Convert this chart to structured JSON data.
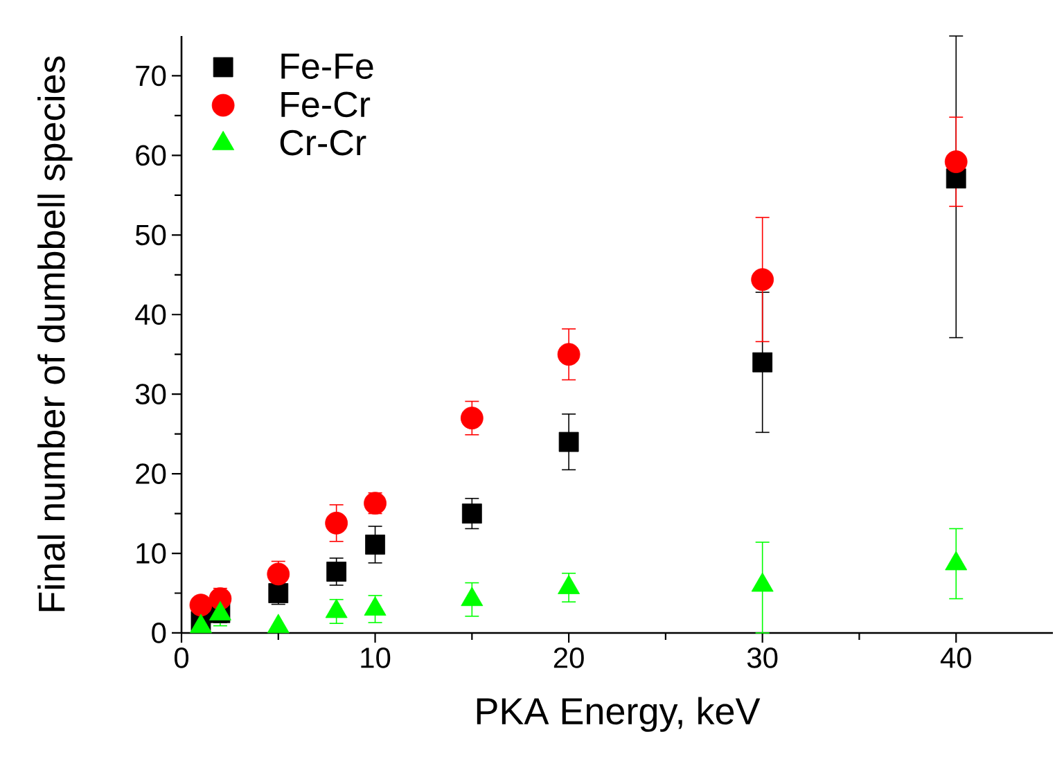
{
  "chart_data": {
    "type": "scatter",
    "xlabel": "PKA Energy, keV",
    "ylabel": "Final number of dumbbell species",
    "xlim": [
      0,
      45
    ],
    "ylim": [
      0,
      75
    ],
    "xticks": [
      0,
      10,
      20,
      30,
      40
    ],
    "yticks": [
      0,
      10,
      20,
      30,
      40,
      50,
      60,
      70
    ],
    "legend": "top left",
    "grid": false,
    "series": [
      {
        "name": "Fe-Fe",
        "color": "#000000",
        "marker": "square",
        "x": [
          1,
          2,
          5,
          8,
          10,
          15,
          20,
          30,
          40
        ],
        "values": [
          1.5,
          2.5,
          5.0,
          7.7,
          11.1,
          15.0,
          24.0,
          34.0,
          57.1
        ],
        "errors": [
          null,
          1.2,
          1.4,
          1.7,
          2.3,
          1.9,
          3.5,
          8.8,
          [
            37.1,
            75
          ]
        ]
      },
      {
        "name": "Fe-Cr",
        "color": "#ff0000",
        "marker": "circle",
        "x": [
          1,
          2,
          5,
          8,
          10,
          15,
          20,
          30,
          40
        ],
        "values": [
          3.5,
          4.3,
          7.4,
          13.8,
          16.3,
          27.0,
          35.0,
          44.4,
          59.2
        ],
        "errors": [
          0.8,
          1.3,
          1.6,
          2.3,
          1.3,
          2.1,
          3.2,
          7.8,
          5.6
        ]
      },
      {
        "name": "Cr-Cr",
        "color": "#00ff00",
        "marker": "triangle",
        "x": [
          1,
          2,
          5,
          8,
          10,
          15,
          20,
          30,
          40
        ],
        "values": [
          0.8,
          2.4,
          0.8,
          2.7,
          3.0,
          4.2,
          5.7,
          6.0,
          8.7
        ],
        "errors": [
          null,
          1.5,
          null,
          1.5,
          1.7,
          2.1,
          1.8,
          [
            0,
            11.4
          ],
          4.4
        ]
      }
    ]
  }
}
